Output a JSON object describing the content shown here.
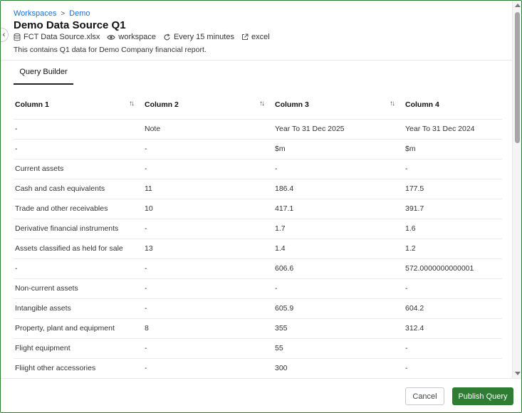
{
  "breadcrumb": {
    "items": [
      "Workspaces",
      "Demo"
    ],
    "separator": ">"
  },
  "title": "Demo Data Source Q1",
  "meta": {
    "file": "FCT Data Source.xlsx",
    "scope": "workspace",
    "schedule": "Every 15 minutes",
    "source_type": "excel"
  },
  "description": "This contains Q1 data for Demo Company financial report.",
  "tabs": [
    "Query Builder"
  ],
  "table": {
    "columns": [
      "Column 1",
      "Column 2",
      "Column 3",
      "Column 4"
    ],
    "rows": [
      [
        "-",
        "Note",
        "Year To 31 Dec 2025",
        "Year To 31 Dec 2024"
      ],
      [
        "-",
        "-",
        "$m",
        "$m"
      ],
      [
        "Current assets",
        "-",
        "-",
        "-"
      ],
      [
        "Cash and cash equivalents",
        "11",
        "186.4",
        "177.5"
      ],
      [
        "Trade and other receivables",
        "10",
        "417.1",
        "391.7"
      ],
      [
        "Derivative financial instruments",
        "-",
        "1.7",
        "1.6"
      ],
      [
        "Assets classified as held for sale",
        "13",
        "1.4",
        "1.2"
      ],
      [
        "-",
        "-",
        "606.6",
        "572.0000000000001"
      ],
      [
        "Non-current assets",
        "-",
        "-",
        "-"
      ],
      [
        "Intangible assets",
        "-",
        "605.9",
        "604.2"
      ],
      [
        "Property, plant and equipment",
        "8",
        "355",
        "312.4"
      ],
      [
        "Flight equipment",
        "-",
        "55",
        "-"
      ],
      [
        "Fliight other accessories",
        "-",
        "300",
        "-"
      ]
    ]
  },
  "footer": {
    "cancel_label": "Cancel",
    "publish_label": "Publish Query"
  },
  "colors": {
    "accent_green": "#2e7d32",
    "link_blue": "#1d6fd1"
  }
}
